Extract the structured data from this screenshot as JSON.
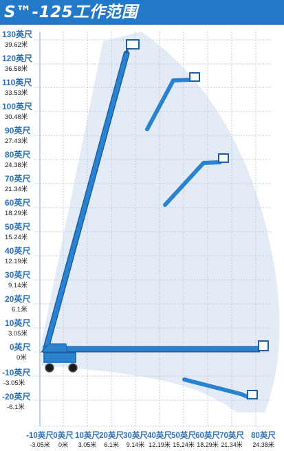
{
  "title": "S™-125工作范围",
  "y_axis": {
    "labels": [
      {
        "ft": "130英尺",
        "m": "39.62米"
      },
      {
        "ft": "120英尺",
        "m": "36.58米"
      },
      {
        "ft": "110英尺",
        "m": "33.53米"
      },
      {
        "ft": "100英尺",
        "m": "30.48米"
      },
      {
        "ft": "90英尺",
        "m": "27.43米"
      },
      {
        "ft": "80英尺",
        "m": "24.38米"
      },
      {
        "ft": "70英尺",
        "m": "21.34米"
      },
      {
        "ft": "60英尺",
        "m": "18.29米"
      },
      {
        "ft": "50英尺",
        "m": "15.24米"
      },
      {
        "ft": "40英尺",
        "m": "12.19米"
      },
      {
        "ft": "30英尺",
        "m": "9.14米"
      },
      {
        "ft": "20英尺",
        "m": "6.1米"
      },
      {
        "ft": "10英尺",
        "m": "3.05米"
      },
      {
        "ft": "0英尺",
        "m": "0米"
      },
      {
        "ft": "-10英尺",
        "m": "-3.05米"
      },
      {
        "ft": "-20英尺",
        "m": "-6.1米"
      }
    ]
  },
  "x_axis": {
    "labels": [
      {
        "ft": "-10英尺",
        "m": "-3.05米"
      },
      {
        "ft": "0英尺",
        "m": "0米"
      },
      {
        "ft": "10英尺",
        "m": "3.05米"
      },
      {
        "ft": "20英尺",
        "m": "6.1米"
      },
      {
        "ft": "30英尺",
        "m": "9.14米"
      },
      {
        "ft": "40英尺",
        "m": "12.19米"
      },
      {
        "ft": "50英尺",
        "m": "15.24米"
      },
      {
        "ft": "60英尺",
        "m": "18.29米"
      },
      {
        "ft": "70英尺",
        "m": "21.34米"
      },
      {
        "ft": "80英尺",
        "m": "24.38米"
      }
    ]
  },
  "colors": {
    "title_bg": "#2379c9",
    "boom": "#2b82cf",
    "boom_edge": "#1a5ea8",
    "envelope": "#e3ebf6",
    "grid": "#b9cbe3",
    "label_blue": "#2a6fb6"
  }
}
